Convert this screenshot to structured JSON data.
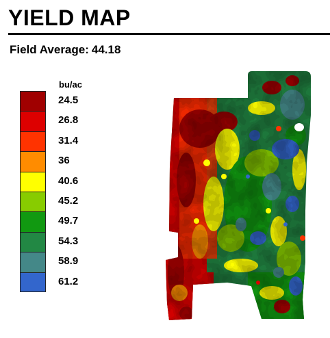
{
  "title": "YIELD MAP",
  "field_average": {
    "label": "Field Average:",
    "value": "44.18"
  },
  "legend": {
    "unit": "bu/ac",
    "items": [
      {
        "value": "24.5",
        "color": "#a00000"
      },
      {
        "value": "26.8",
        "color": "#dd0000"
      },
      {
        "value": "31.4",
        "color": "#ff3300"
      },
      {
        "value": "36",
        "color": "#ff8c00"
      },
      {
        "value": "40.6",
        "color": "#ffff00"
      },
      {
        "value": "45.2",
        "color": "#88cc00"
      },
      {
        "value": "49.7",
        "color": "#119911"
      },
      {
        "value": "54.3",
        "color": "#228844"
      },
      {
        "value": "58.9",
        "color": "#448888"
      },
      {
        "value": "61.2",
        "color": "#3366cc"
      }
    ]
  }
}
